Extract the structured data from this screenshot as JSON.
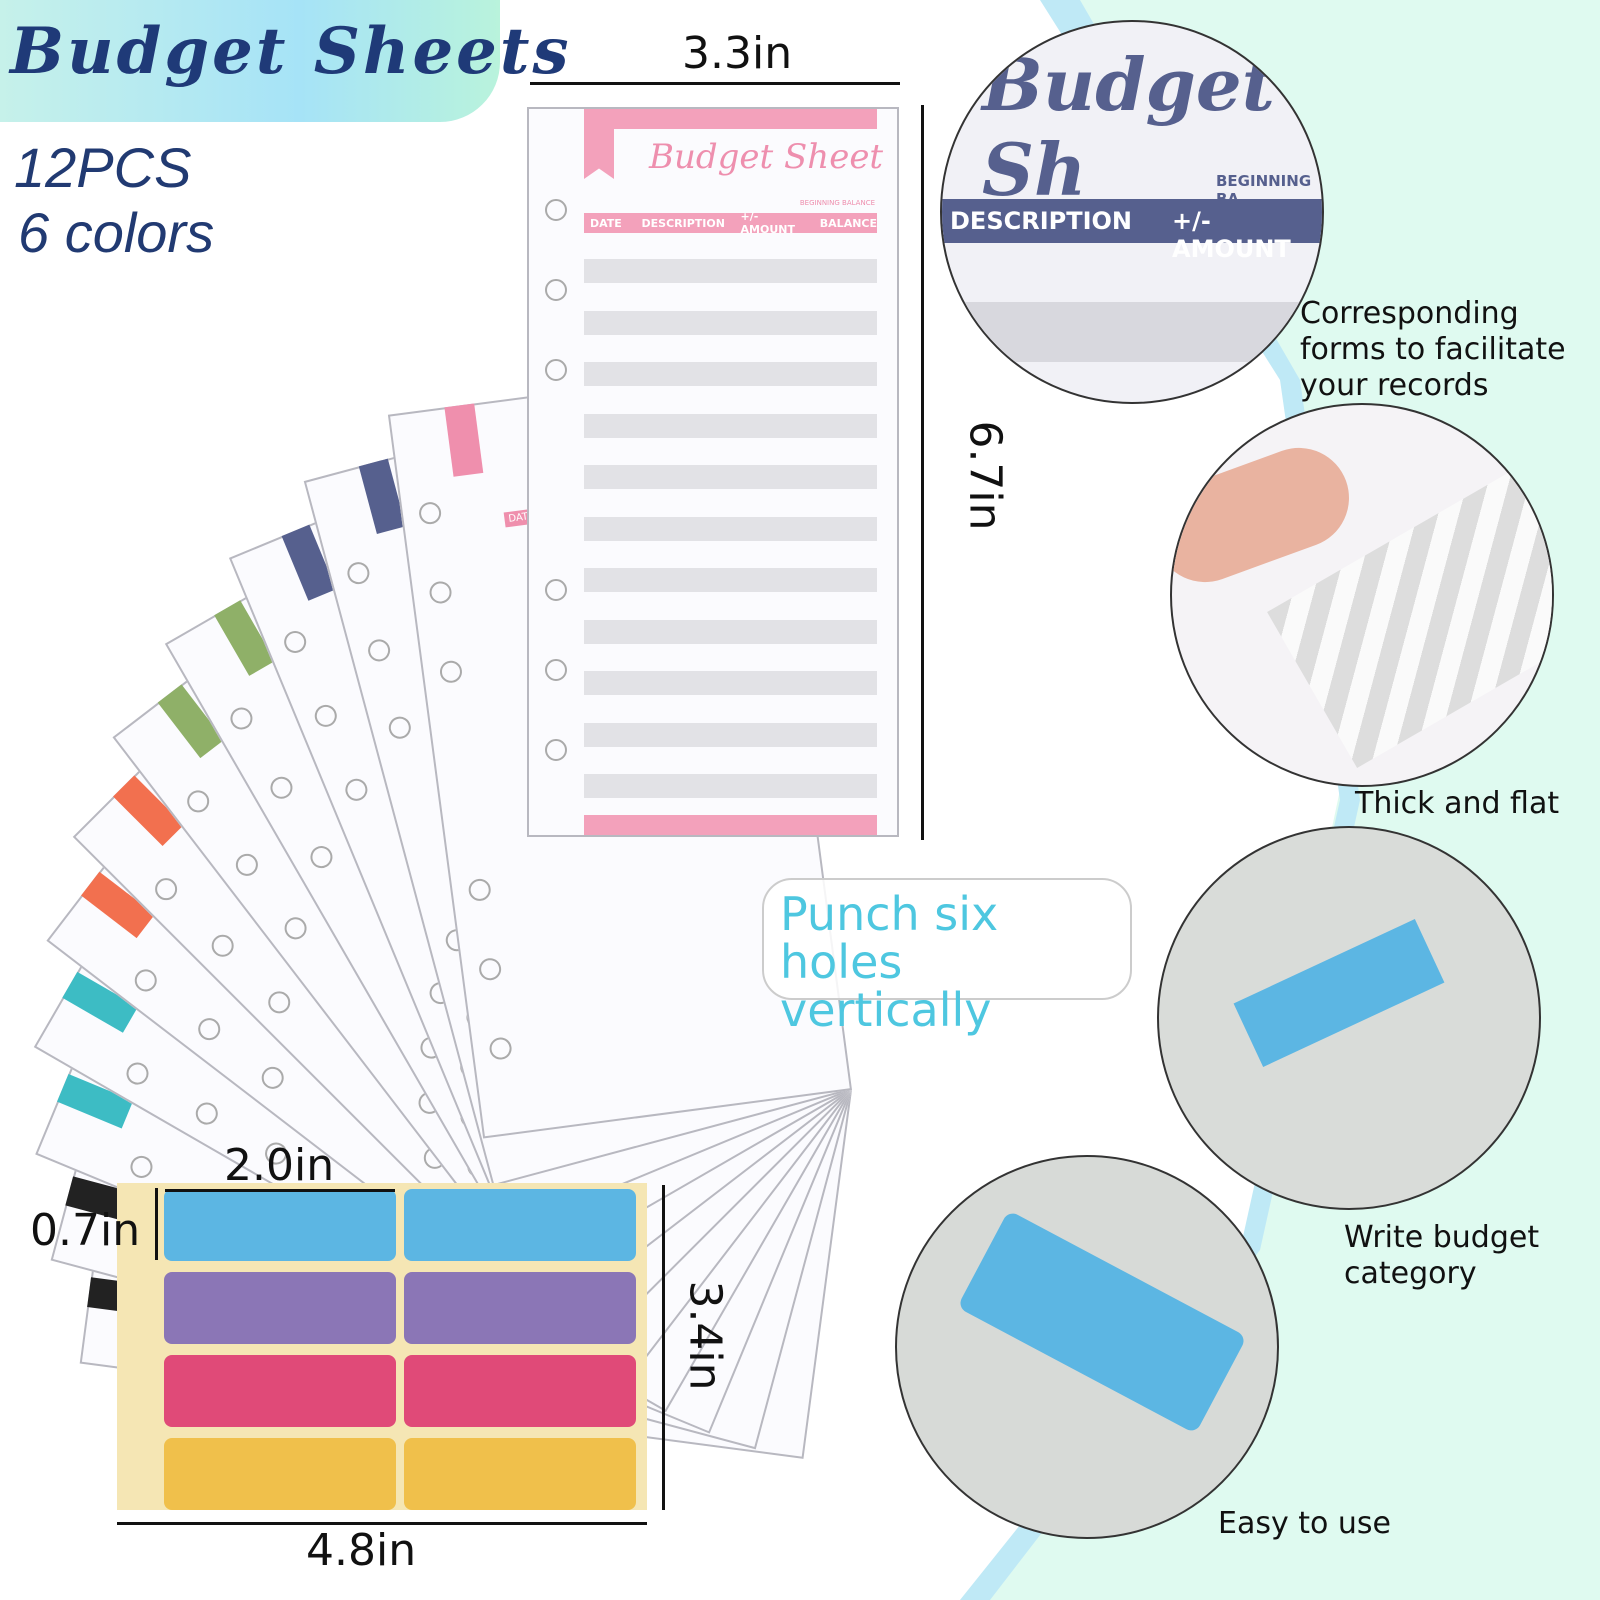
{
  "header": {
    "title": "Budget Sheets",
    "quantity": "12PCS",
    "colors_count": "6 colors"
  },
  "dimensions": {
    "sheet_width": "3.3in",
    "sheet_height": "6.7in",
    "label_width": "2.0in",
    "label_height": "0.7in",
    "sticker_sheet_height": "3.4in",
    "sticker_sheet_width": "4.8in"
  },
  "sheet": {
    "title": "Budget Sheet",
    "beginning_balance": "BEGINNING BALANCE",
    "columns": [
      "DATE",
      "DESCRIPTION",
      "+/- AMOUNT",
      "BALANCE"
    ],
    "tab_label": "DATE"
  },
  "fan_colors": [
    "#222222",
    "#222222",
    "#3dbcc4",
    "#3dbcc4",
    "#f2704f",
    "#f2704f",
    "#8fb068",
    "#8fb068",
    "#56608e",
    "#56608e",
    "#ef8fad"
  ],
  "front_color": "#f3a1bb",
  "zoom_detail": {
    "title": "Budget Sh",
    "beginning": "BEGINNING BA",
    "col1": "DESCRIPTION",
    "col2": "+/- AMOUNT"
  },
  "captions": {
    "forms": "Corresponding forms to facilitate your records",
    "thick": "Thick and flat",
    "write": "Write budget category",
    "easy": "Easy to use",
    "punch": "Punch six holes vertically"
  },
  "sticker_colors": [
    "#5cb6e3",
    "#8b76b6",
    "#e04a78",
    "#f0c04b"
  ]
}
